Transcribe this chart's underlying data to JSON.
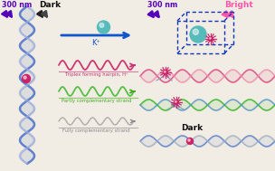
{
  "bg_color": "#f2ede4",
  "left_label_300nm": "300 nm",
  "left_label_dark": "Dark",
  "right_label_300nm": "300 nm",
  "right_label_bright": "Bright",
  "right_label_dark": "Dark",
  "label_kplus": "K⁺",
  "label_triplex": "Triplex forming hairpin, H⁺",
  "label_partly": "Partly complementary strand",
  "label_fully": "Fully complementary strand",
  "color_purple": "#5500bb",
  "color_pink_bright": "#ff55aa",
  "color_blue_box": "#1133bb",
  "color_blue_dna1": "#5577bb",
  "color_blue_dna2": "#8899cc",
  "color_magenta": "#cc2266",
  "color_green": "#44bb33",
  "color_gray_dna": "#aaaaaa",
  "color_teal_sphere": "#55bbbb",
  "color_arrow_blue": "#1155cc",
  "color_arrow_pink": "#cc3377",
  "color_arrow_green": "#44aa22",
  "color_arrow_gray": "#888888",
  "color_dark_arrow": "#222222"
}
